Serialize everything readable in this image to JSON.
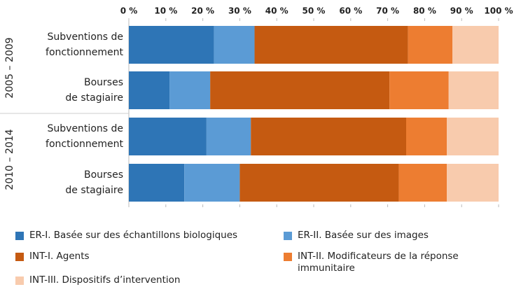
{
  "chart_data": {
    "type": "stacked-barh",
    "groups": [
      "2005 – 2009",
      "2010 – 2014"
    ],
    "categories": [
      [
        "Subventions de",
        "fonctionnement"
      ],
      [
        "Bourses",
        "de stagiaire"
      ],
      [
        "Subventions de",
        "fonctionnement"
      ],
      [
        "Bourses",
        "de stagiaire"
      ]
    ],
    "series": [
      {
        "name": "ER-I. Basée sur des échantillons biologiques",
        "color": "#2e75b6",
        "values": [
          23,
          11,
          21,
          15
        ]
      },
      {
        "name": "ER-II. Basée sur des images",
        "color": "#5b9bd5",
        "values": [
          11,
          11,
          12,
          15
        ]
      },
      {
        "name": "INT-I. Agents",
        "color": "#c55a11",
        "values": [
          41.5,
          48.5,
          42,
          43
        ]
      },
      {
        "name": "INT-II. Modificateurs de la réponse immunitaire",
        "color": "#ed7d31",
        "values": [
          12,
          16,
          11,
          13
        ]
      },
      {
        "name": "INT-III. Dispositifs d’intervention",
        "color": "#f8cbad",
        "values": [
          12.5,
          13.5,
          14,
          14
        ]
      }
    ],
    "xlim": [
      0,
      100
    ],
    "xticks": [
      {
        "value": 0,
        "label": "0 %"
      },
      {
        "value": 10,
        "label": "10 %"
      },
      {
        "value": 20,
        "label": "20 %"
      },
      {
        "value": 30,
        "label": "30 %"
      },
      {
        "value": 40,
        "label": "40 %"
      },
      {
        "value": 50,
        "label": "50 %"
      },
      {
        "value": 60,
        "label": "60 %"
      },
      {
        "value": 70,
        "label": "70 %"
      },
      {
        "value": 80,
        "label": "80 %"
      },
      {
        "value": 90,
        "label": "90 %"
      },
      {
        "value": 100,
        "label": "100 %"
      }
    ]
  }
}
